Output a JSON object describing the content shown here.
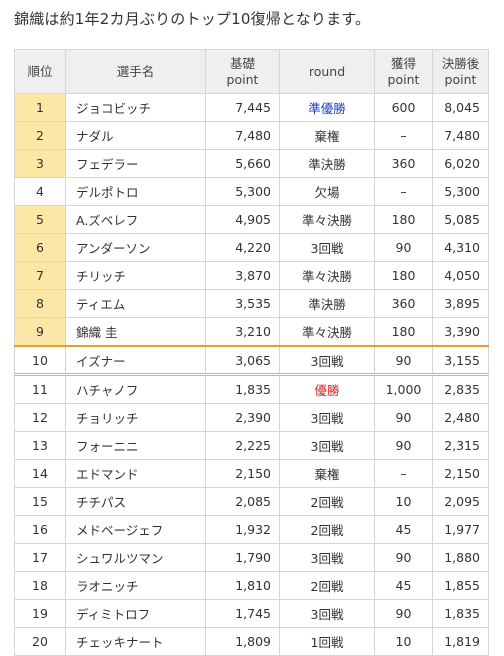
{
  "heading": "錦織は約1年2カ月ぶりのトップ10復帰となります。",
  "headers": {
    "rank": "順位",
    "name": "選手名",
    "base_line1": "基礎",
    "base_line2": "point",
    "round": "round",
    "gain_line1": "獲得",
    "gain_line2": "point",
    "final_line1": "決勝後",
    "final_line2": "point"
  },
  "colors": {
    "top10_highlight": "#fce7a6",
    "cutline": "#e0a030",
    "blue_text": "#1a3ec9",
    "red_text": "#d61c1c"
  },
  "rows": [
    {
      "rank": "1",
      "name": "ジョコビッチ",
      "base": "7,445",
      "round": "準優勝",
      "gain": "600",
      "final": "8,045"
    },
    {
      "rank": "2",
      "name": "ナダル",
      "base": "7,480",
      "round": "棄権",
      "gain": "–",
      "final": "7,480"
    },
    {
      "rank": "3",
      "name": "フェデラー",
      "base": "5,660",
      "round": "準決勝",
      "gain": "360",
      "final": "6,020"
    },
    {
      "rank": "4",
      "name": "デルポトロ",
      "base": "5,300",
      "round": "欠場",
      "gain": "–",
      "final": "5,300"
    },
    {
      "rank": "5",
      "name": "A.ズベレフ",
      "base": "4,905",
      "round": "準々決勝",
      "gain": "180",
      "final": "5,085"
    },
    {
      "rank": "6",
      "name": "アンダーソン",
      "base": "4,220",
      "round": "3回戦",
      "gain": "90",
      "final": "4,310"
    },
    {
      "rank": "7",
      "name": "チリッチ",
      "base": "3,870",
      "round": "準々決勝",
      "gain": "180",
      "final": "4,050"
    },
    {
      "rank": "8",
      "name": "ティエム",
      "base": "3,535",
      "round": "準決勝",
      "gain": "360",
      "final": "3,895"
    },
    {
      "rank": "9",
      "name": "錦織 圭",
      "base": "3,210",
      "round": "準々決勝",
      "gain": "180",
      "final": "3,390"
    },
    {
      "rank": "10",
      "name": "イズナー",
      "base": "3,065",
      "round": "3回戦",
      "gain": "90",
      "final": "3,155"
    },
    {
      "rank": "11",
      "name": "ハチャノフ",
      "base": "1,835",
      "round": "優勝",
      "gain": "1,000",
      "final": "2,835"
    },
    {
      "rank": "12",
      "name": "チョリッチ",
      "base": "2,390",
      "round": "3回戦",
      "gain": "90",
      "final": "2,480"
    },
    {
      "rank": "13",
      "name": "フォーニニ",
      "base": "2,225",
      "round": "3回戦",
      "gain": "90",
      "final": "2,315"
    },
    {
      "rank": "14",
      "name": "エドマンド",
      "base": "2,150",
      "round": "棄権",
      "gain": "–",
      "final": "2,150"
    },
    {
      "rank": "15",
      "name": "チチパス",
      "base": "2,085",
      "round": "2回戦",
      "gain": "10",
      "final": "2,095"
    },
    {
      "rank": "16",
      "name": "メドベージェフ",
      "base": "1,932",
      "round": "2回戦",
      "gain": "45",
      "final": "1,977"
    },
    {
      "rank": "17",
      "name": "シュワルツマン",
      "base": "1,790",
      "round": "3回戦",
      "gain": "90",
      "final": "1,880"
    },
    {
      "rank": "18",
      "name": "ラオニッチ",
      "base": "1,810",
      "round": "2回戦",
      "gain": "45",
      "final": "1,855"
    },
    {
      "rank": "19",
      "name": "ディミトロフ",
      "base": "1,745",
      "round": "3回戦",
      "gain": "90",
      "final": "1,835"
    },
    {
      "rank": "20",
      "name": "チェッキナート",
      "base": "1,809",
      "round": "1回戦",
      "gain": "10",
      "final": "1,819"
    }
  ]
}
